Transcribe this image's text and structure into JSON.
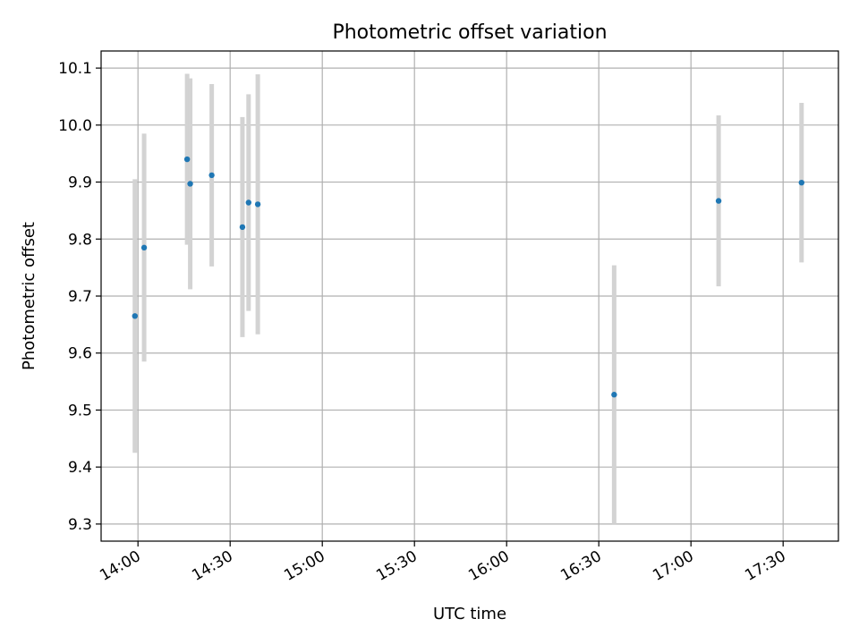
{
  "chart_data": {
    "type": "scatter",
    "title": "Photometric offset variation",
    "xlabel": "UTC time",
    "ylabel": "Photometric offset",
    "grid": true,
    "error_bars": true,
    "x_ticks": [
      "14:00",
      "14:30",
      "15:00",
      "15:30",
      "16:00",
      "16:30",
      "17:00",
      "17:30"
    ],
    "y_ticks": [
      "9.3",
      "9.4",
      "9.5",
      "9.6",
      "9.7",
      "9.8",
      "9.9",
      "10.0",
      "10.1"
    ],
    "xlim": [
      "13:48",
      "17:48"
    ],
    "ylim": [
      9.27,
      10.13
    ],
    "colors": {
      "point": "#1f77b4",
      "error_bar": "#d3d3d3",
      "grid": "#b0b0b0",
      "axes": "#000000"
    },
    "points": [
      {
        "time": "13:59",
        "value": 9.665,
        "error": 0.24
      },
      {
        "time": "14:02",
        "value": 9.785,
        "error": 0.2
      },
      {
        "time": "14:16",
        "value": 9.94,
        "error": 0.15
      },
      {
        "time": "14:17",
        "value": 9.897,
        "error": 0.185
      },
      {
        "time": "14:24",
        "value": 9.912,
        "error": 0.16
      },
      {
        "time": "14:34",
        "value": 9.821,
        "error": 0.193
      },
      {
        "time": "14:36",
        "value": 9.864,
        "error": 0.19
      },
      {
        "time": "14:39",
        "value": 9.861,
        "error": 0.228
      },
      {
        "time": "16:35",
        "value": 9.527,
        "error": 0.227
      },
      {
        "time": "17:09",
        "value": 9.867,
        "error": 0.15
      },
      {
        "time": "17:36",
        "value": 9.899,
        "error": 0.14
      }
    ]
  }
}
